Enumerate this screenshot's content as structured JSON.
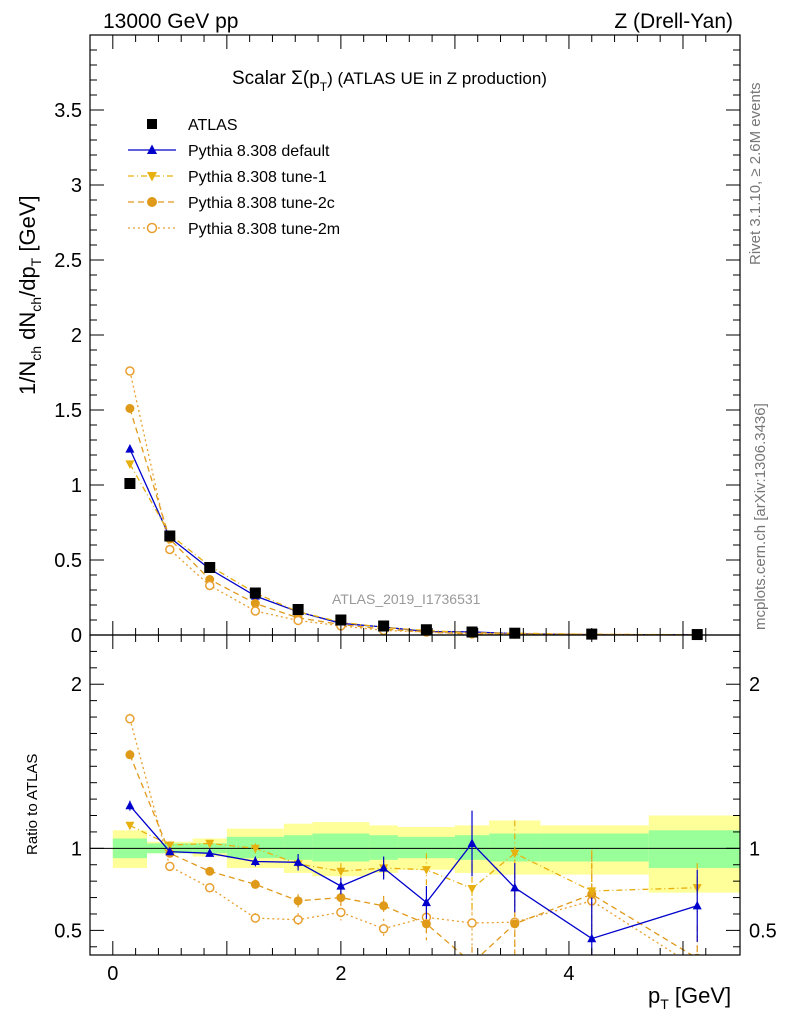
{
  "header": {
    "left": "13000 GeV pp",
    "right": "Z (Drell-Yan)"
  },
  "side": {
    "rivet": "Rivet 3.1.10, ≥ 2.6M events",
    "mcplots": "mcplots.cern.ch [arXiv:1306.3436]"
  },
  "chart_data": [
    {
      "type": "scatter",
      "panel": "main",
      "title_prefix": "Scalar Σ(p",
      "title_sub": "T",
      "title_suffix": ") (ATLAS UE in Z production)",
      "ylabel": "1/N_ch dN_ch/dp_T [GeV]",
      "watermark": "ATLAS_2019_I1736531",
      "xlim": [
        -0.2,
        5.5
      ],
      "ylim": [
        0,
        4.0
      ],
      "y_ticks": [
        0,
        0.5,
        1,
        1.5,
        2,
        2.5,
        3,
        3.5
      ],
      "y_tick_labels": [
        "0",
        "0.5",
        "1",
        "1.5",
        "2",
        "2.5",
        "3",
        "3.5"
      ],
      "legend_position": "top-left",
      "x": [
        0.15,
        0.5,
        0.85,
        1.25,
        1.625,
        2.0,
        2.375,
        2.75,
        3.15,
        3.525,
        4.2,
        5.125
      ],
      "series": [
        {
          "name": "ATLAS",
          "color": "#000000",
          "marker": "square",
          "line": "none",
          "values": [
            1.01,
            0.66,
            0.45,
            0.28,
            0.17,
            0.1,
            0.06,
            0.035,
            0.02,
            0.012,
            0.006,
            0.003
          ]
        },
        {
          "name": "Pythia 8.308 default",
          "color": "#0000cc",
          "marker": "triangle-up",
          "line": "solid",
          "values": [
            1.24,
            0.65,
            0.44,
            0.26,
            0.155,
            0.078,
            0.053,
            0.023,
            0.021,
            0.009,
            0.0027,
            0.002
          ]
        },
        {
          "name": "Pythia 8.308 tune-1",
          "color": "#e8b00f",
          "marker": "triangle-down",
          "line": "dashdot",
          "values": [
            1.14,
            0.67,
            0.46,
            0.28,
            0.155,
            0.086,
            0.05,
            0.03,
            0.015,
            0.012,
            0.0045,
            0.0023
          ]
        },
        {
          "name": "Pythia 8.308 tune-2c",
          "color": "#e09a1a",
          "marker": "circle",
          "line": "dashed",
          "values": [
            1.51,
            0.64,
            0.37,
            0.21,
            0.115,
            0.07,
            0.039,
            0.019,
            0.006,
            0.0065,
            0.0043,
            0.001
          ]
        },
        {
          "name": "Pythia 8.308 tune-2m",
          "color": "#e8a030",
          "marker": "circle-open",
          "line": "dotted",
          "values": [
            1.76,
            0.57,
            0.33,
            0.16,
            0.097,
            0.061,
            0.031,
            0.02,
            0.011,
            0.0066,
            0.0041,
            0.0007
          ]
        }
      ]
    },
    {
      "type": "scatter",
      "panel": "ratio",
      "ylabel": "Ratio to ATLAS",
      "xlabel_main": "p",
      "xlabel_sub": "T",
      "xlabel_unit": " [GeV]",
      "xlim": [
        -0.2,
        5.5
      ],
      "ylim": [
        0.35,
        2.3
      ],
      "x_ticks": [
        0,
        2,
        4
      ],
      "x_tick_labels": [
        "0",
        "2",
        "4"
      ],
      "y_ticks": [
        0.5,
        1,
        2
      ],
      "y_tick_labels": [
        "0.5",
        "1",
        "2"
      ],
      "x": [
        0.15,
        0.5,
        0.85,
        1.25,
        1.625,
        2.0,
        2.375,
        2.75,
        3.15,
        3.525,
        4.2,
        5.125
      ],
      "bands": {
        "bin_edges": [
          0.0,
          0.3,
          0.7,
          1.0,
          1.5,
          1.75,
          2.25,
          2.5,
          3.0,
          3.3,
          3.75,
          4.7,
          5.55
        ],
        "inner": {
          "color": "#99ff99",
          "low": [
            0.94,
            0.97,
            0.97,
            0.94,
            0.93,
            0.92,
            0.93,
            0.94,
            0.93,
            0.92,
            0.92,
            0.88
          ],
          "high": [
            1.06,
            1.03,
            1.03,
            1.07,
            1.08,
            1.09,
            1.08,
            1.07,
            1.08,
            1.09,
            1.09,
            1.11
          ]
        },
        "outer": {
          "color": "#ffff99",
          "low": [
            0.88,
            0.97,
            0.95,
            0.88,
            0.85,
            0.83,
            0.85,
            0.87,
            0.85,
            0.84,
            0.84,
            0.73
          ],
          "high": [
            1.11,
            1.04,
            1.06,
            1.12,
            1.15,
            1.16,
            1.14,
            1.13,
            1.14,
            1.17,
            1.14,
            1.2
          ]
        }
      },
      "series": [
        {
          "name": "Pythia 8.308 default",
          "values": [
            1.26,
            0.98,
            0.97,
            0.92,
            0.915,
            0.77,
            0.88,
            0.67,
            1.03,
            0.76,
            0.45,
            0.65
          ],
          "errors": [
            0.03,
            0.02,
            0.02,
            0.03,
            0.05,
            0.05,
            0.07,
            0.1,
            0.2,
            0.15,
            0.25,
            0.22
          ]
        },
        {
          "name": "Pythia 8.308 tune-1",
          "values": [
            1.14,
            1.02,
            1.03,
            1.0,
            0.905,
            0.86,
            0.88,
            0.87,
            0.755,
            0.97,
            0.74,
            0.76
          ],
          "errors": [
            0.02,
            0.02,
            0.02,
            0.03,
            0.04,
            0.05,
            0.06,
            0.1,
            0.15,
            0.2,
            0.25,
            0.15
          ]
        },
        {
          "name": "Pythia 8.308 tune-2c",
          "values": [
            1.57,
            0.97,
            0.86,
            0.78,
            0.68,
            0.7,
            0.65,
            0.54,
            0.3,
            0.54,
            0.72,
            0.33
          ],
          "errors": [
            0.03,
            0.02,
            0.02,
            0.03,
            0.04,
            0.05,
            0.06,
            0.1,
            0.1,
            0.2,
            0.25,
            0.2
          ]
        },
        {
          "name": "Pythia 8.308 tune-2m",
          "values": [
            1.79,
            0.89,
            0.76,
            0.575,
            0.565,
            0.61,
            0.51,
            0.58,
            0.545,
            0.55,
            0.68,
            0.27
          ],
          "errors": [
            0.03,
            0.02,
            0.02,
            0.03,
            0.04,
            0.05,
            0.06,
            0.1,
            0.15,
            0.2,
            0.25,
            0.2
          ]
        }
      ]
    }
  ]
}
